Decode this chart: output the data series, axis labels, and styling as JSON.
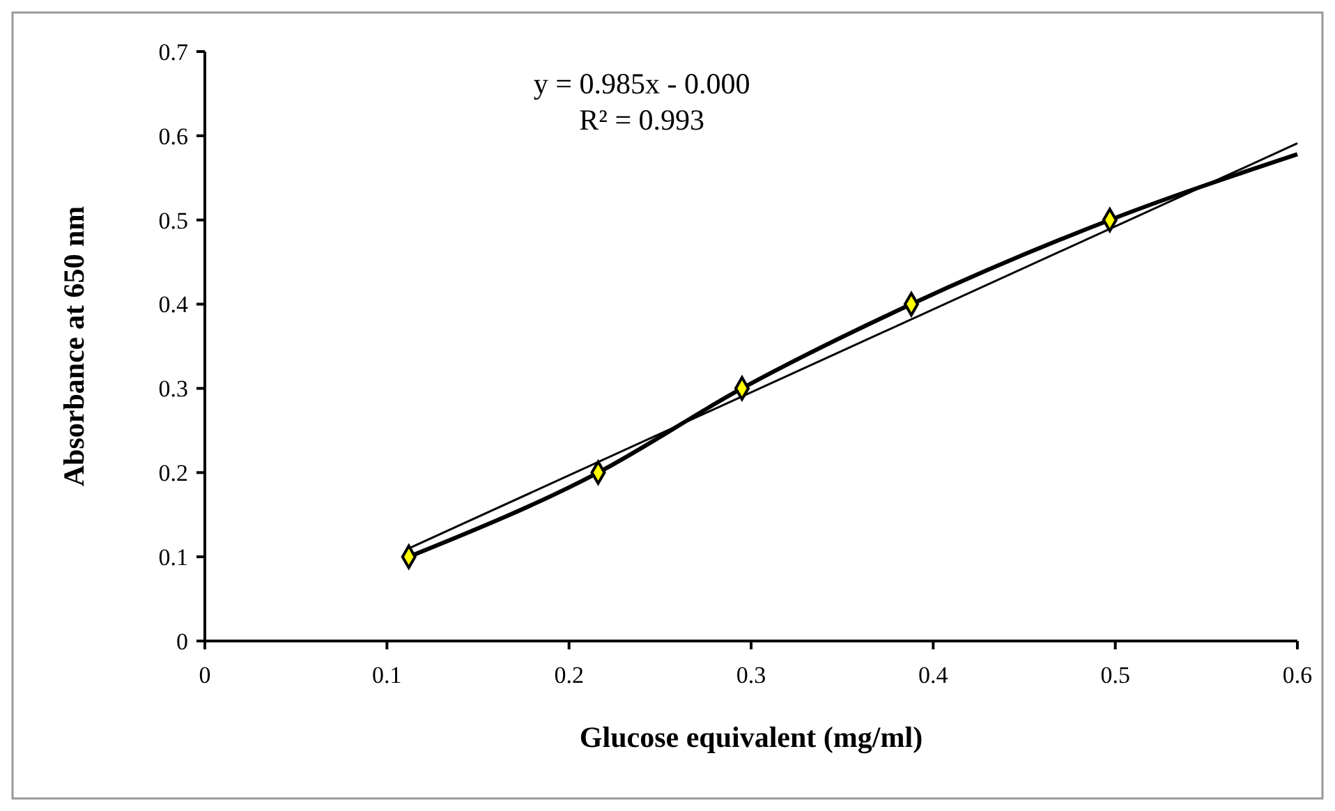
{
  "chart_data": {
    "type": "scatter",
    "xlabel": "Glucose equivalent (mg/ml)",
    "ylabel": "Absorbance at 650 nm",
    "xlim": [
      0,
      0.6
    ],
    "xticks": [
      0,
      0.1,
      0.2,
      0.3,
      0.4,
      0.5,
      0.6
    ],
    "ylim": [
      0,
      0.7
    ],
    "yticks": [
      0,
      0.1,
      0.2,
      0.3,
      0.4,
      0.5,
      0.6,
      0.7
    ],
    "annotations": [
      "y = 0.985x - 0.000",
      "R² = 0.993"
    ],
    "series": [
      {
        "type": "line",
        "color": "#000000",
        "x": [
          0.112,
          0.216,
          0.295,
          0.388,
          0.497,
          0.6
        ],
        "values": [
          0.1,
          0.2,
          0.3,
          0.4,
          0.5,
          0.578
        ],
        "marker": "none"
      },
      {
        "type": "line",
        "color": "#000000",
        "x": [
          0.112,
          0.6
        ],
        "values": [
          0.11,
          0.591
        ],
        "marker": "none"
      },
      {
        "color": "#ffff00",
        "x": [
          0.112,
          0.216,
          0.295,
          0.388,
          0.497
        ],
        "values": [
          0.1,
          0.2,
          0.3,
          0.4,
          0.5
        ],
        "marker": "diamond"
      }
    ]
  }
}
